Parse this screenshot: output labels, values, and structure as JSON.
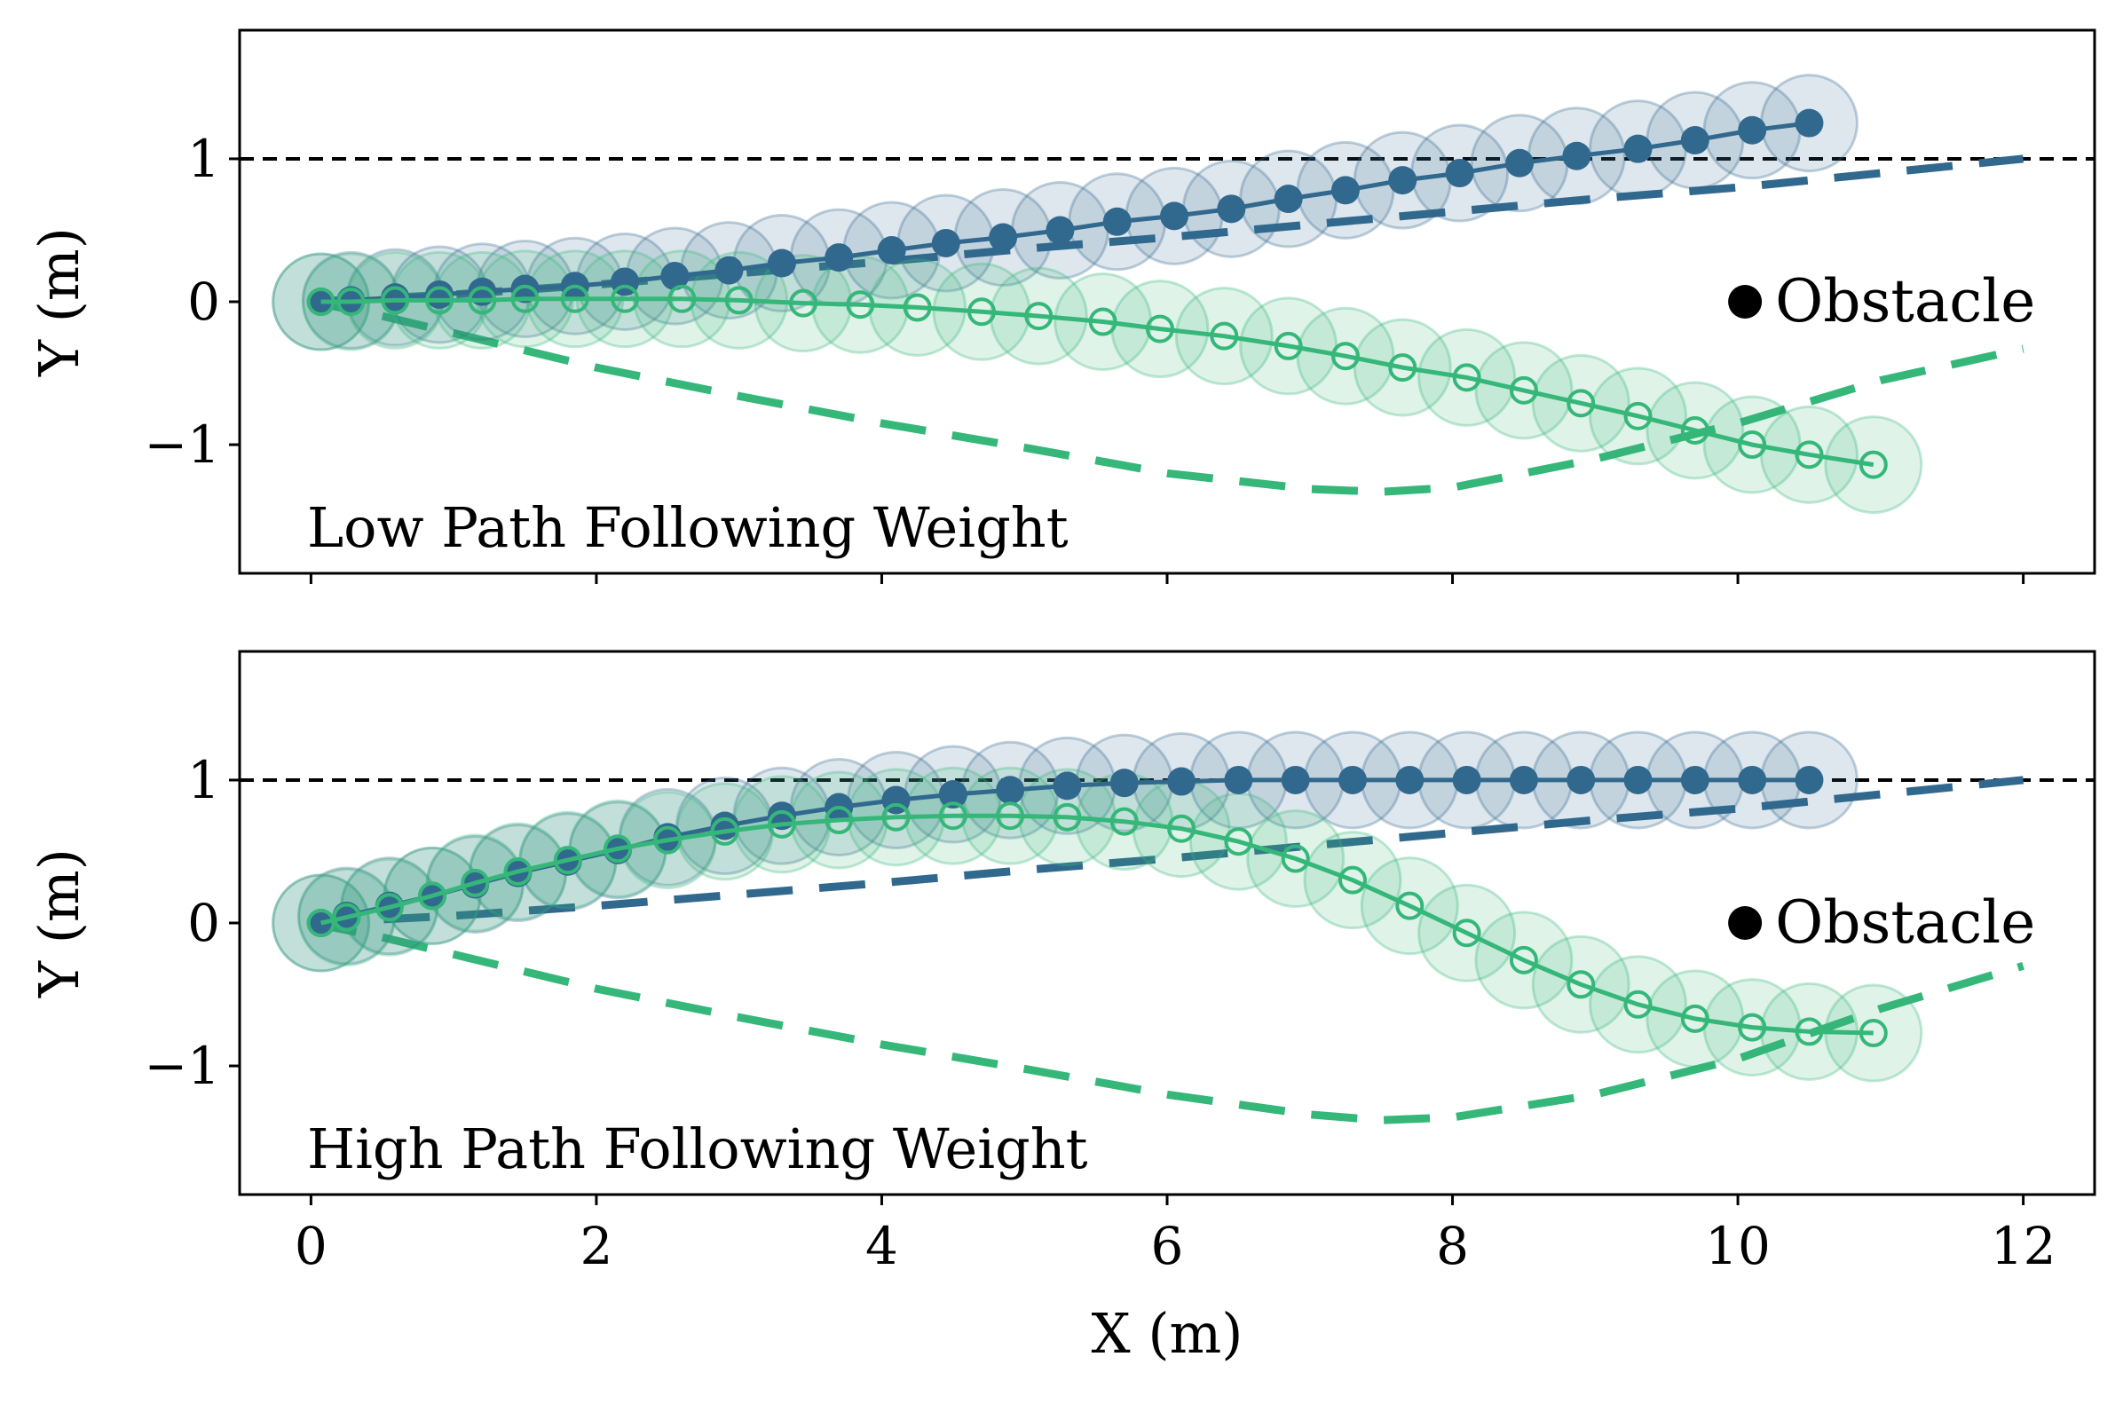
{
  "chart_data": [
    {
      "type": "line",
      "annotation": "Low Path Following Weight",
      "ylabel": "Y (m)",
      "xlabel": "",
      "xlim": [
        -0.5,
        12.5
      ],
      "ylim": [
        -1.9,
        1.9
      ],
      "xticks": [
        0,
        2,
        4,
        6,
        8,
        10,
        12
      ],
      "yticks": [
        -1,
        0,
        1
      ],
      "ytick_labels": [
        "−1",
        "0",
        "1"
      ],
      "reference_line_y": 1,
      "legend": {
        "label": "Obstacle",
        "placement": "right"
      },
      "colors": {
        "blue": "#31688e",
        "green": "#35b779"
      },
      "series": [
        {
          "color": "#31688e",
          "style": "dashed",
          "x": [
            0,
            1,
            2,
            3,
            4,
            5,
            6,
            7,
            8,
            9,
            10,
            11,
            12
          ],
          "y": [
            0,
            0.05,
            0.12,
            0.2,
            0.28,
            0.37,
            0.45,
            0.54,
            0.63,
            0.72,
            0.8,
            0.9,
            1.0
          ]
        },
        {
          "color": "#35b779",
          "style": "dashed",
          "x": [
            0,
            0.5,
            1,
            2,
            3,
            4,
            5,
            6,
            7,
            7.5,
            8,
            9,
            10,
            11,
            12
          ],
          "y": [
            0,
            -0.1,
            -0.22,
            -0.46,
            -0.66,
            -0.85,
            -1.02,
            -1.2,
            -1.31,
            -1.33,
            -1.3,
            -1.1,
            -0.85,
            -0.55,
            -0.33
          ]
        },
        {
          "color": "#31688e",
          "style": "solid",
          "marker": "filled-circle",
          "x": [
            0.07,
            0.28,
            0.59,
            0.9,
            1.2,
            1.5,
            1.85,
            2.2,
            2.55,
            2.93,
            3.3,
            3.7,
            4.07,
            4.45,
            4.85,
            5.25,
            5.65,
            6.05,
            6.45,
            6.85,
            7.25,
            7.65,
            8.05,
            8.47,
            8.87,
            9.3,
            9.7,
            10.1,
            10.5
          ],
          "y": [
            0,
            0.01,
            0.03,
            0.05,
            0.07,
            0.09,
            0.11,
            0.14,
            0.18,
            0.22,
            0.27,
            0.31,
            0.36,
            0.41,
            0.45,
            0.5,
            0.56,
            0.6,
            0.65,
            0.72,
            0.78,
            0.85,
            0.9,
            0.97,
            1.02,
            1.07,
            1.13,
            1.2,
            1.25
          ]
        },
        {
          "color": "#35b779",
          "style": "solid",
          "marker": "open-circle",
          "x": [
            0.07,
            0.28,
            0.59,
            0.9,
            1.2,
            1.5,
            1.85,
            2.2,
            2.6,
            3.0,
            3.45,
            3.85,
            4.25,
            4.7,
            5.1,
            5.55,
            5.95,
            6.4,
            6.85,
            7.25,
            7.65,
            8.1,
            8.5,
            8.9,
            9.3,
            9.7,
            10.1,
            10.5,
            10.95
          ],
          "y": [
            0,
            0,
            0.01,
            0.01,
            0.01,
            0.02,
            0.02,
            0.02,
            0.02,
            0.01,
            -0.01,
            -0.02,
            -0.04,
            -0.07,
            -0.1,
            -0.14,
            -0.19,
            -0.24,
            -0.31,
            -0.38,
            -0.46,
            -0.53,
            -0.62,
            -0.71,
            -0.8,
            -0.9,
            -1.0,
            -1.07,
            -1.14
          ]
        }
      ]
    },
    {
      "type": "line",
      "annotation": "High Path Following Weight",
      "ylabel": "Y (m)",
      "xlabel": "X (m)",
      "xlim": [
        -0.5,
        12.5
      ],
      "ylim": [
        -1.9,
        1.9
      ],
      "xticks": [
        0,
        2,
        4,
        6,
        8,
        10,
        12
      ],
      "xtick_labels": [
        "0",
        "2",
        "4",
        "6",
        "8",
        "10",
        "12"
      ],
      "yticks": [
        -1,
        0,
        1
      ],
      "ytick_labels": [
        "−1",
        "0",
        "1"
      ],
      "reference_line_y": 1,
      "legend": {
        "label": "Obstacle",
        "placement": "right"
      },
      "colors": {
        "blue": "#31688e",
        "green": "#35b779"
      },
      "series": [
        {
          "color": "#31688e",
          "style": "dashed",
          "x": [
            0,
            1,
            2,
            3,
            4,
            5,
            6,
            7,
            8,
            9,
            10,
            11,
            12
          ],
          "y": [
            0,
            0.05,
            0.12,
            0.2,
            0.28,
            0.37,
            0.45,
            0.54,
            0.63,
            0.72,
            0.8,
            0.9,
            1.0
          ]
        },
        {
          "color": "#35b779",
          "style": "dashed",
          "x": [
            0,
            0.5,
            1,
            2,
            3,
            4,
            5,
            6,
            7,
            7.5,
            8,
            9,
            10,
            11,
            12
          ],
          "y": [
            0,
            -0.1,
            -0.22,
            -0.46,
            -0.66,
            -0.85,
            -1.02,
            -1.2,
            -1.34,
            -1.38,
            -1.36,
            -1.2,
            -0.95,
            -0.6,
            -0.3
          ]
        },
        {
          "color": "#31688e",
          "style": "solid",
          "marker": "filled-circle",
          "x": [
            0.07,
            0.25,
            0.55,
            0.85,
            1.15,
            1.45,
            1.8,
            2.15,
            2.5,
            2.9,
            3.3,
            3.7,
            4.1,
            4.5,
            4.9,
            5.3,
            5.7,
            6.1,
            6.5,
            6.9,
            7.3,
            7.7,
            8.1,
            8.5,
            8.9,
            9.3,
            9.7,
            10.1,
            10.5
          ],
          "y": [
            0,
            0.05,
            0.12,
            0.19,
            0.27,
            0.35,
            0.43,
            0.51,
            0.6,
            0.68,
            0.75,
            0.81,
            0.86,
            0.9,
            0.93,
            0.96,
            0.98,
            0.99,
            1.0,
            1.0,
            1.0,
            1.0,
            1.0,
            1.0,
            1.0,
            1.0,
            1.0,
            1.0,
            1.0
          ]
        },
        {
          "color": "#35b779",
          "style": "solid",
          "marker": "open-circle",
          "x": [
            0.07,
            0.25,
            0.55,
            0.85,
            1.15,
            1.45,
            1.8,
            2.15,
            2.5,
            2.9,
            3.3,
            3.7,
            4.1,
            4.5,
            4.9,
            5.3,
            5.7,
            6.1,
            6.5,
            6.9,
            7.3,
            7.7,
            8.1,
            8.5,
            8.9,
            9.3,
            9.7,
            10.1,
            10.5,
            10.95
          ],
          "y": [
            0,
            0.04,
            0.11,
            0.19,
            0.28,
            0.36,
            0.44,
            0.52,
            0.58,
            0.64,
            0.69,
            0.72,
            0.74,
            0.75,
            0.75,
            0.74,
            0.71,
            0.66,
            0.57,
            0.45,
            0.3,
            0.12,
            -0.07,
            -0.26,
            -0.43,
            -0.57,
            -0.67,
            -0.73,
            -0.76,
            -0.77
          ]
        }
      ]
    }
  ]
}
